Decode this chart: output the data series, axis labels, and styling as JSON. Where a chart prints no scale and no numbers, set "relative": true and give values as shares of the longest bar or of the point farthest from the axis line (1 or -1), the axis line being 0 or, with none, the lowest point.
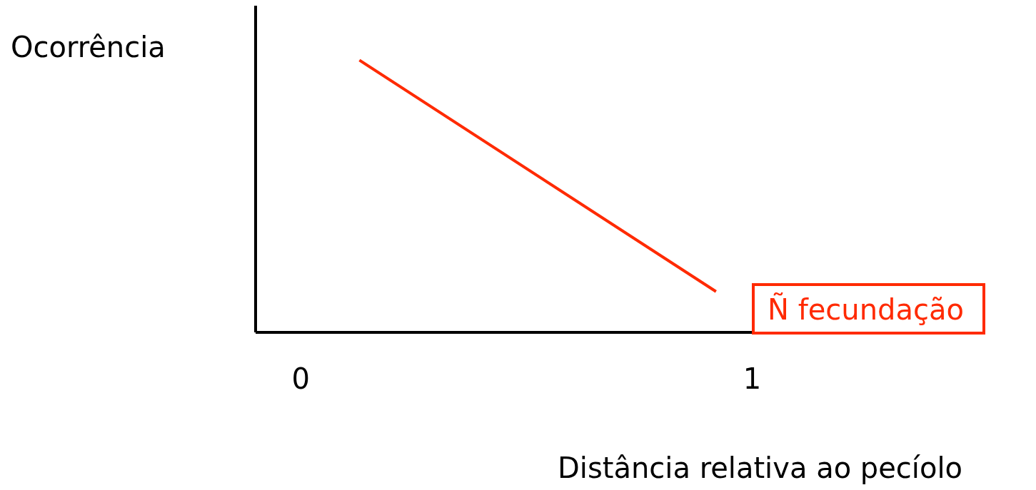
{
  "chart_data": {
    "type": "line",
    "xlabel": "Distância relativa ao pecíolo",
    "ylabel": "Ocorrência",
    "relative": true,
    "xlim": [
      -0.1,
      1.05
    ],
    "xticks": [
      0,
      1
    ],
    "legend": "right",
    "grid": false,
    "marker": "none",
    "line_style": "solid",
    "series": [
      {
        "name": "Ñ fecundação",
        "color": "#ff2a00",
        "x": [
          0.13,
          0.92
        ],
        "values": [
          1,
          0.15
        ]
      }
    ]
  }
}
